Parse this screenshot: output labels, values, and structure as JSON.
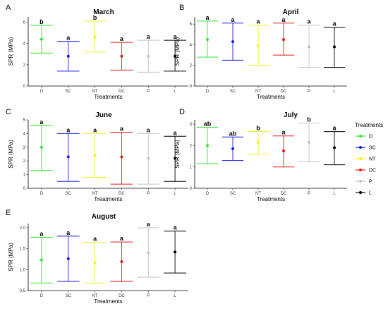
{
  "chart_data": [
    {
      "type": "errorbar",
      "panel_letter": "A",
      "title": "March",
      "xlabel": "Treatments",
      "ylabel": "SPR (MPa)",
      "categories": [
        "D",
        "SC",
        "NT",
        "DC",
        "P",
        "L"
      ],
      "ylim": [
        0,
        6.5
      ],
      "yticks": [
        "0",
        "2",
        "4",
        "6"
      ],
      "yticks_values": [
        0,
        2,
        4,
        6
      ],
      "series": [
        {
          "mean": 4.4,
          "lower": 3.1,
          "upper": 5.7,
          "label": "b"
        },
        {
          "mean": 2.8,
          "lower": 1.4,
          "upper": 4.2,
          "label": "a"
        },
        {
          "mean": 4.6,
          "lower": 3.2,
          "upper": 6.1,
          "label": "b"
        },
        {
          "mean": 2.8,
          "lower": 1.5,
          "upper": 4.1,
          "label": "a"
        },
        {
          "mean": 2.8,
          "lower": 1.3,
          "upper": 4.3,
          "label": "a"
        },
        {
          "mean": 2.8,
          "lower": 1.4,
          "upper": 4.3,
          "label": "a"
        }
      ]
    },
    {
      "type": "errorbar",
      "panel_letter": "B",
      "title": "April",
      "xlabel": "Treatments",
      "ylabel": "SPR (MPa)",
      "categories": [
        "D",
        "SC",
        "NT",
        "DC",
        "P",
        "L"
      ],
      "ylim": [
        0,
        6.7
      ],
      "yticks": [
        "0",
        "2",
        "4",
        "6"
      ],
      "yticks_values": [
        0,
        2,
        4,
        6
      ],
      "series": [
        {
          "mean": 4.5,
          "lower": 2.8,
          "upper": 6.3,
          "label": "a"
        },
        {
          "mean": 4.3,
          "lower": 2.5,
          "upper": 6.1,
          "label": "a"
        },
        {
          "mean": 3.9,
          "lower": 2.0,
          "upper": 5.9,
          "label": "a"
        },
        {
          "mean": 4.5,
          "lower": 3.0,
          "upper": 6.1,
          "label": "a"
        },
        {
          "mean": 3.8,
          "lower": 1.8,
          "upper": 5.9,
          "label": "a"
        },
        {
          "mean": 3.8,
          "lower": 1.8,
          "upper": 5.7,
          "label": "a"
        }
      ]
    },
    {
      "type": "errorbar",
      "panel_letter": "C",
      "title": "June",
      "xlabel": "Treatments",
      "ylabel": "SPR (MPa)",
      "categories": [
        "D",
        "SC",
        "NT",
        "DC",
        "P",
        "L"
      ],
      "ylim": [
        0,
        5.0
      ],
      "yticks": [
        "0",
        "1",
        "2",
        "3",
        "4",
        "5"
      ],
      "yticks_values": [
        0,
        1,
        2,
        3,
        4,
        5
      ],
      "series": [
        {
          "mean": 3.0,
          "lower": 1.3,
          "upper": 4.6,
          "label": "a"
        },
        {
          "mean": 2.3,
          "lower": 0.5,
          "upper": 4.0,
          "label": "a"
        },
        {
          "mean": 2.4,
          "lower": 0.8,
          "upper": 4.0,
          "label": "a"
        },
        {
          "mean": 2.3,
          "lower": 0.3,
          "upper": 4.1,
          "label": "a"
        },
        {
          "mean": 2.2,
          "lower": 0.3,
          "upper": 4.0,
          "label": "a"
        },
        {
          "mean": 2.2,
          "lower": 0.5,
          "upper": 3.8,
          "label": "a"
        }
      ]
    },
    {
      "type": "errorbar",
      "panel_letter": "D",
      "title": "July",
      "xlabel": "Treatments",
      "ylabel": "SPR (MPa)",
      "categories": [
        "D",
        "SC",
        "NT",
        "DC",
        "P",
        "L"
      ],
      "ylim": [
        0,
        3.2
      ],
      "yticks": [
        "0",
        "1",
        "2",
        "3"
      ],
      "yticks_values": [
        0,
        1,
        2,
        3
      ],
      "series": [
        {
          "mean": 2.0,
          "lower": 1.15,
          "upper": 2.85,
          "label": "ab"
        },
        {
          "mean": 1.85,
          "lower": 1.3,
          "upper": 2.4,
          "label": "ab"
        },
        {
          "mean": 2.15,
          "lower": 1.6,
          "upper": 2.65,
          "label": "b"
        },
        {
          "mean": 1.75,
          "lower": 1.0,
          "upper": 2.45,
          "label": "a"
        },
        {
          "mean": 2.15,
          "lower": 1.25,
          "upper": 3.05,
          "label": "b"
        },
        {
          "mean": 1.9,
          "lower": 1.1,
          "upper": 2.65,
          "label": "a"
        }
      ]
    },
    {
      "type": "errorbar",
      "panel_letter": "E",
      "title": "August",
      "xlabel": "Treatments",
      "ylabel": "SPR (MPa)",
      "categories": [
        "D",
        "SC",
        "NT",
        "DC",
        "P",
        "L"
      ],
      "ylim": [
        0.5,
        2.1
      ],
      "yticks": [
        "0.5",
        "1.0",
        "1.5",
        "2.0"
      ],
      "yticks_values": [
        0.5,
        1.0,
        1.5,
        2.0
      ],
      "series": [
        {
          "mean": 1.23,
          "lower": 0.68,
          "upper": 1.77,
          "label": "a"
        },
        {
          "mean": 1.26,
          "lower": 0.72,
          "upper": 1.8,
          "label": "a"
        },
        {
          "mean": 1.16,
          "lower": 0.68,
          "upper": 1.65,
          "label": "a"
        },
        {
          "mean": 1.19,
          "lower": 0.72,
          "upper": 1.66,
          "label": "a"
        },
        {
          "mean": 1.4,
          "lower": 0.82,
          "upper": 2.0,
          "label": "a"
        },
        {
          "mean": 1.42,
          "lower": 0.92,
          "upper": 1.92,
          "label": "a"
        }
      ]
    }
  ],
  "legend": {
    "title": "Treatments",
    "placement": "right",
    "items": [
      {
        "label": "D",
        "color": "#2ee82e"
      },
      {
        "label": "SC",
        "color": "#1a1adb"
      },
      {
        "label": "NT",
        "color": "#f2f21a"
      },
      {
        "label": "DC",
        "color": "#e01a1a"
      },
      {
        "label": "P",
        "color": "#c2c2c2"
      },
      {
        "label": "L",
        "color": "#000000"
      }
    ]
  }
}
